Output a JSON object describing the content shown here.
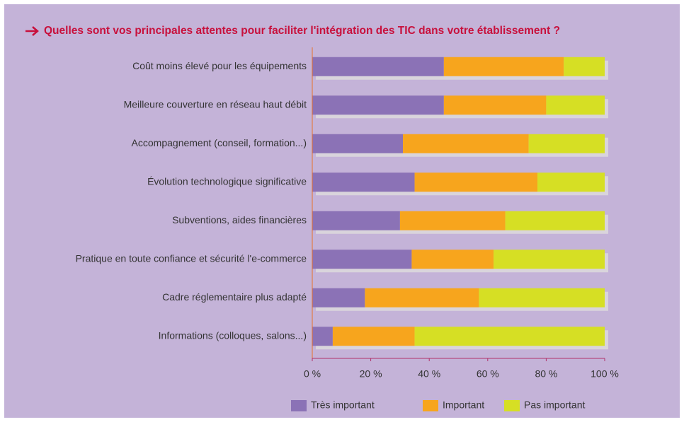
{
  "chart_data": {
    "type": "stacked_barh",
    "title": "Quelles sont vos principales attentes pour faciliter l'intégration des TIC dans votre établissement ?",
    "categories": [
      "Coût moins élevé pour les équipements",
      "Meilleure couverture en réseau haut débit",
      "Accompagnement (conseil, formation...)",
      "Évolution technologique significative",
      "Subventions, aides financières",
      "Pratique en toute confiance et sécurité l'e-commerce",
      "Cadre réglementaire plus adapté",
      "Informations (colloques, salons...)"
    ],
    "series": [
      {
        "name": "Très important",
        "color": "#8b72b6",
        "values": [
          45,
          45,
          31,
          35,
          30,
          34,
          18,
          7
        ]
      },
      {
        "name": "Important",
        "color": "#f7a51d",
        "values": [
          41,
          35,
          43,
          42,
          36,
          28,
          39,
          28
        ]
      },
      {
        "name": "Pas important",
        "color": "#d6df24",
        "values": [
          14,
          20,
          26,
          23,
          34,
          38,
          43,
          65
        ]
      }
    ],
    "xlim": [
      0,
      100
    ],
    "xticks": [
      {
        "value": 0,
        "label": "0 %"
      },
      {
        "value": 20,
        "label": "20 %"
      },
      {
        "value": 40,
        "label": "40 %"
      },
      {
        "value": 60,
        "label": "60 %"
      },
      {
        "value": 80,
        "label": "80 %"
      },
      {
        "value": 100,
        "label": "100 %"
      }
    ],
    "legend": "bottom"
  }
}
